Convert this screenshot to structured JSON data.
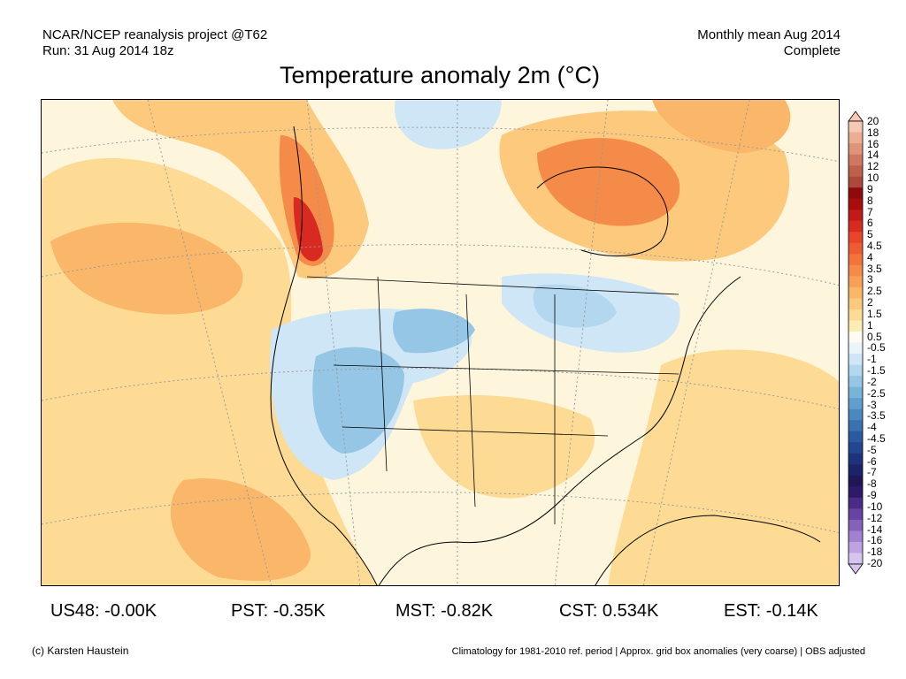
{
  "header": {
    "left_line1": "NCAR/NCEP reanalysis project @T62",
    "left_line2": "Run: 31 Aug 2014 18z",
    "right_line1": "Monthly mean Aug 2014",
    "right_line2": "Complete"
  },
  "title": "Temperature anomaly 2m (°C)",
  "colorbar": {
    "labels": [
      "20",
      "18",
      "16",
      "14",
      "12",
      "10",
      "9",
      "8",
      "7",
      "6",
      "5",
      "4.5",
      "4",
      "3.5",
      "3",
      "2.5",
      "2",
      "1.5",
      "1",
      "0.5",
      "-0.5",
      "-1",
      "-1.5",
      "-2",
      "-2.5",
      "-3",
      "-3.5",
      "-4",
      "-4.5",
      "-5",
      "-6",
      "-7",
      "-8",
      "-9",
      "-10",
      "-12",
      "-14",
      "-16",
      "-18",
      "-20"
    ],
    "colors": [
      "#f6c9b3",
      "#ecae93",
      "#df9377",
      "#cf785f",
      "#bf604b",
      "#ad493a",
      "#8f0a0a",
      "#a80d0d",
      "#c21a1a",
      "#d92a22",
      "#e8452b",
      "#ee5c33",
      "#f2733c",
      "#f58b48",
      "#f8a057",
      "#fab669",
      "#fcc97d",
      "#fddb94",
      "#fdecb3",
      "#fefbf0",
      "#eaf4fb",
      "#cfe6f6",
      "#b3d7ef",
      "#95c6e6",
      "#78b3da",
      "#5f9ecd",
      "#4b88bf",
      "#3a71b0",
      "#2c5aa0",
      "#22468f",
      "#1d347d",
      "#1b2468",
      "#201658",
      "#2f1a6a",
      "#4a2b85",
      "#6744a1",
      "#8462ba",
      "#a282d0",
      "#bea3e2",
      "#d8c5ef"
    ]
  },
  "stats": [
    {
      "label": "US48: -0.00K"
    },
    {
      "label": "PST: -0.35K"
    },
    {
      "label": "MST: -0.82K"
    },
    {
      "label": "CST: 0.534K"
    },
    {
      "label": "EST: -0.14K"
    }
  ],
  "footer": {
    "left": "(c) Karsten Haustein",
    "right": "Climatology for 1981-2010 ref. period | Approx. grid box anomalies (very coarse) | OBS adjusted"
  }
}
